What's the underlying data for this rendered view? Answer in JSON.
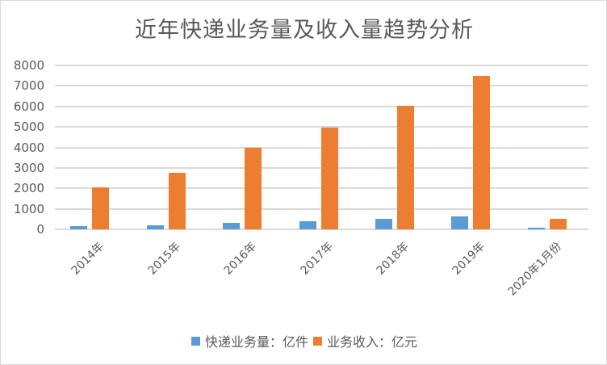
{
  "chart_data": {
    "type": "bar",
    "title": "近年快递业务量及收入量趋势分析",
    "categories": [
      "2014年",
      "2015年",
      "2016年",
      "2017年",
      "2018年",
      "2019年",
      "2020年1月份"
    ],
    "series": [
      {
        "name": "快递业务量：亿件",
        "color": "#5b9bd5",
        "values": [
          140,
          207,
          313,
          401,
          507,
          635,
          60
        ]
      },
      {
        "name": "业务收入：亿元",
        "color": "#ed7d31",
        "values": [
          2045,
          2770,
          3974,
          4957,
          6038,
          7498,
          500
        ]
      }
    ],
    "xlabel": "",
    "ylabel": "",
    "ylim": [
      0,
      8000
    ],
    "yticks": [
      0,
      1000,
      2000,
      3000,
      4000,
      5000,
      6000,
      7000,
      8000
    ],
    "grid": true,
    "legend_position": "bottom"
  },
  "legend": {
    "items": [
      {
        "label": "快递业务量：亿件",
        "color": "#5b9bd5"
      },
      {
        "label": "业务收入：亿元",
        "color": "#ed7d31"
      }
    ]
  }
}
